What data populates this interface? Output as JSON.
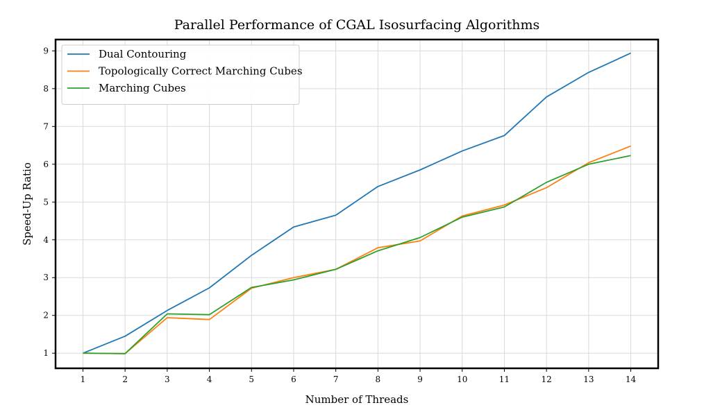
{
  "chart_data": {
    "type": "line",
    "title": "Parallel Performance of CGAL Isosurfacing Algorithms",
    "xlabel": "Number of Threads",
    "ylabel": "Speed-Up Ratio",
    "x": [
      1,
      2,
      3,
      4,
      5,
      6,
      7,
      8,
      9,
      10,
      11,
      12,
      13,
      14
    ],
    "xlim": [
      0.35,
      14.65
    ],
    "ylim": [
      0.6,
      9.3
    ],
    "xticks": [
      1,
      2,
      3,
      4,
      5,
      6,
      7,
      8,
      9,
      10,
      11,
      12,
      13,
      14
    ],
    "yticks": [
      1,
      2,
      3,
      4,
      5,
      6,
      7,
      8,
      9
    ],
    "grid": true,
    "legend_position": "top-left",
    "series": [
      {
        "name": "Dual Contouring",
        "color": "#1f77b4",
        "values": [
          1.0,
          1.45,
          2.13,
          2.73,
          3.59,
          4.34,
          4.65,
          5.41,
          5.85,
          6.35,
          6.76,
          7.78,
          8.43,
          8.94
        ]
      },
      {
        "name": "Topologically Correct Marching Cubes",
        "color": "#ff7f0e",
        "values": [
          1.0,
          0.99,
          1.94,
          1.89,
          2.72,
          3.0,
          3.22,
          3.79,
          3.97,
          4.63,
          4.92,
          5.38,
          6.04,
          6.48
        ]
      },
      {
        "name": "Marching Cubes",
        "color": "#2ca02c",
        "values": [
          1.0,
          0.99,
          2.04,
          2.02,
          2.74,
          2.94,
          3.22,
          3.71,
          4.06,
          4.6,
          4.87,
          5.52,
          6.0,
          6.23
        ]
      }
    ]
  }
}
